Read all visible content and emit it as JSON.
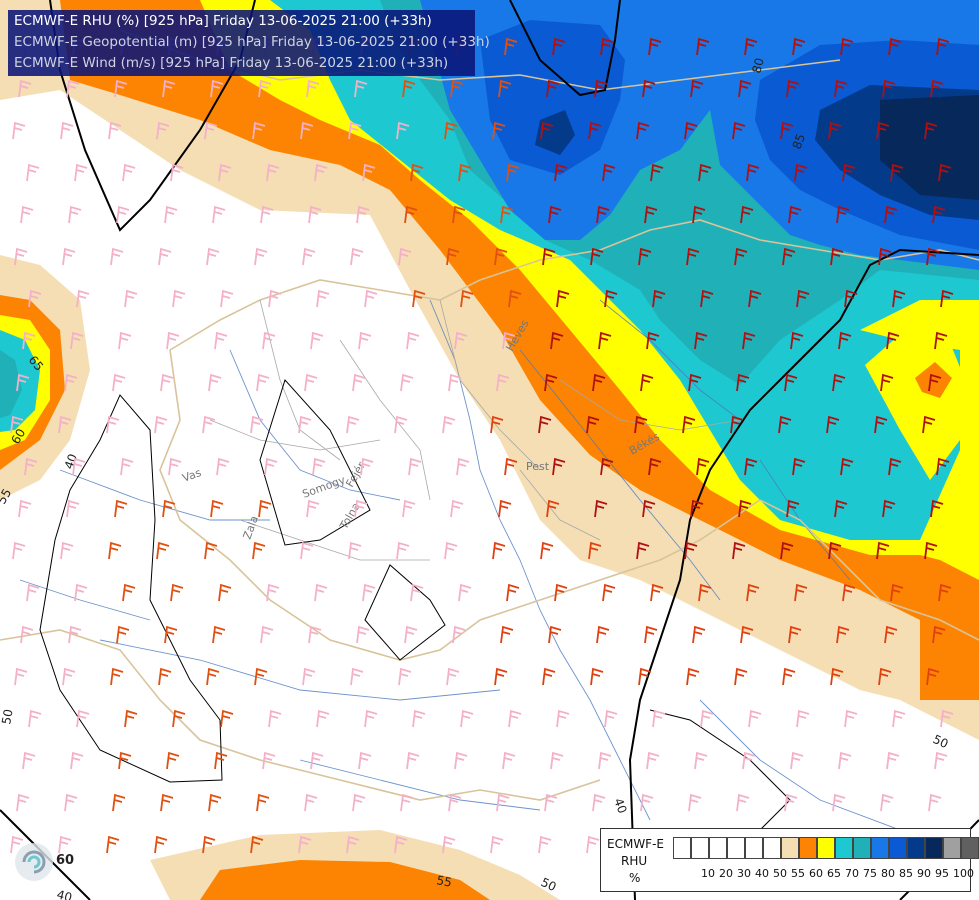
{
  "title": {
    "line1": "ECMWF-E RHU (%) [925 hPa] Friday 13-06-2025 21:00 (+33h)",
    "line2": "ECMWF-E Geopotential (m) [925 hPa] Friday 13-06-2025 21:00 (+33h)",
    "line3": "ECMWF-E Wind (m/s) [925 hPa] Friday 13-06-2025 21:00 (+33h)"
  },
  "legend": {
    "model": "ECMWF-E",
    "variable": "RHU",
    "unit": "%",
    "classes": [
      {
        "label": "",
        "color": "#ffffff"
      },
      {
        "label": "10",
        "color": "#ffffff"
      },
      {
        "label": "20",
        "color": "#ffffff"
      },
      {
        "label": "30",
        "color": "#ffffff"
      },
      {
        "label": "40",
        "color": "#ffffff"
      },
      {
        "label": "50",
        "color": "#ffffff"
      },
      {
        "label": "55",
        "color": "#f5deb3"
      },
      {
        "label": "60",
        "color": "#fc8402"
      },
      {
        "label": "65",
        "color": "#ffff00"
      },
      {
        "label": "70",
        "color": "#1ec8d0"
      },
      {
        "label": "75",
        "color": "#20b0b8"
      },
      {
        "label": "80",
        "color": "#1878e8"
      },
      {
        "label": "85",
        "color": "#0a5ad4"
      },
      {
        "label": "90",
        "color": "#033a8a"
      },
      {
        "label": "95",
        "color": "#06285a"
      },
      {
        "label": "100",
        "color": "#a0a0a0"
      },
      {
        "label": "",
        "color": "#606060"
      }
    ]
  },
  "contour_labels": [
    {
      "text": "80"
    },
    {
      "text": "85"
    },
    {
      "text": "65"
    },
    {
      "text": "60"
    },
    {
      "text": "55"
    },
    {
      "text": "40"
    },
    {
      "text": "50"
    },
    {
      "text": "50"
    },
    {
      "text": "40"
    },
    {
      "text": "60"
    },
    {
      "text": "55"
    },
    {
      "text": "50"
    },
    {
      "text": "40"
    }
  ],
  "place_labels": [
    {
      "text": "Vas"
    },
    {
      "text": "Zala"
    },
    {
      "text": "Somogy"
    },
    {
      "text": "Fejér"
    },
    {
      "text": "Tolna"
    },
    {
      "text": "Pest"
    },
    {
      "text": "Heves"
    },
    {
      "text": "Békés"
    }
  ],
  "colors": {
    "wheat": "#f5deb3",
    "orange": "#fc8402",
    "yellow": "#ffff00",
    "cyan": "#1ec8d0",
    "teal": "#20b0b8",
    "blue": "#1878e8",
    "deepblue": "#0a5ad4",
    "navy": "#06285a",
    "river": "#4a78c0",
    "border": "#d8c49a",
    "county": "#aaaaaa",
    "geopotential": "#000000"
  }
}
